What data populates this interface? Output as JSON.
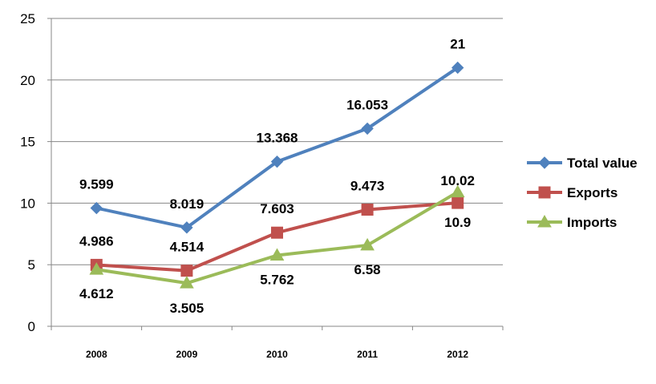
{
  "chart_data": {
    "type": "line",
    "categories": [
      "2008",
      "2009",
      "2010",
      "2011",
      "2012"
    ],
    "ylim": [
      0,
      25
    ],
    "yticks": [
      0,
      5,
      10,
      15,
      20,
      25
    ],
    "grid": true,
    "legend_position": "right",
    "series": [
      {
        "name": "Total value",
        "color": "#4f81bd",
        "marker": "diamond",
        "values": [
          9.599,
          8.019,
          13.368,
          16.053,
          21
        ],
        "labels": [
          "9.599",
          "8.019",
          "13.368",
          "16.053",
          "21"
        ]
      },
      {
        "name": "Exports",
        "color": "#c0504d",
        "marker": "square",
        "values": [
          4.986,
          4.514,
          7.603,
          9.473,
          10.02
        ],
        "labels": [
          "4.986",
          "4.514",
          "7.603",
          "9.473",
          "10.02"
        ]
      },
      {
        "name": "Imports",
        "color": "#9bbb59",
        "marker": "triangle",
        "values": [
          4.612,
          3.505,
          5.762,
          6.58,
          10.9
        ],
        "labels": [
          "4.612",
          "3.505",
          "5.762",
          "6.58",
          "10.9"
        ]
      }
    ]
  }
}
